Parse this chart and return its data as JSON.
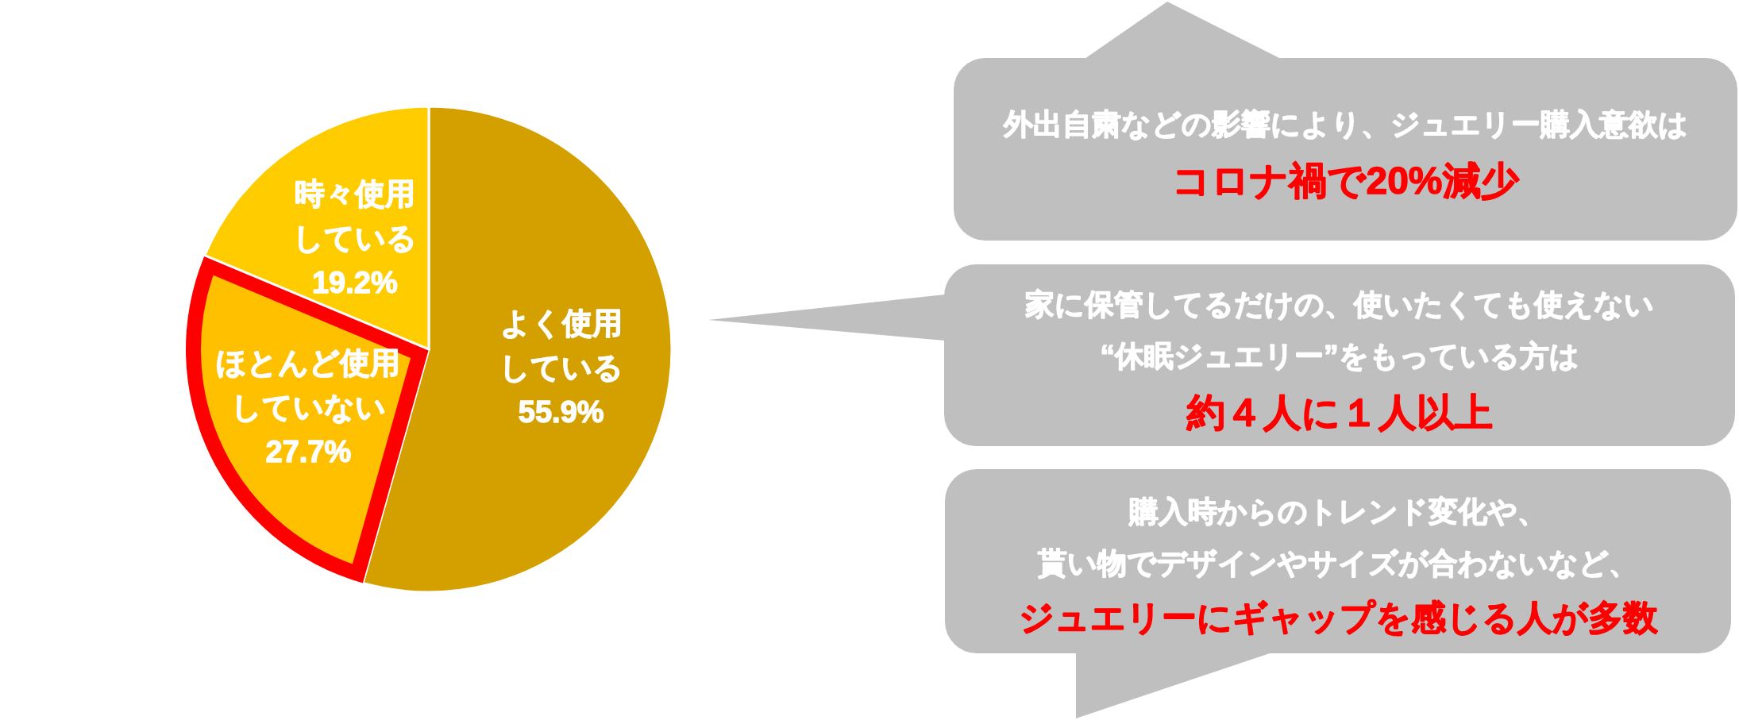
{
  "chart_data": {
    "type": "pie",
    "categories": [
      "よく使用している",
      "ほとんど使用していない",
      "時々使用している"
    ],
    "values": [
      55.9,
      27.7,
      19.2
    ],
    "value_labels": [
      "55.9%",
      "27.7%",
      "19.2%"
    ],
    "colors": [
      "#d4a000",
      "#ffc000",
      "#ffcc00"
    ],
    "annotations": [
      "外出自粛などの影響により、ジュエリー購入意欲は",
      "コロナ禍で20%減少",
      "家に保管してるだけの、使いたくても使えない",
      "“休眠ジュエリー”をもっている方は",
      "約４人に１人以上",
      "購入時からのトレンド変化や、",
      "貰い物でデザインやサイズが合わないなど、",
      "ジュエリーにギャップを感じる人が多数"
    ]
  }
}
